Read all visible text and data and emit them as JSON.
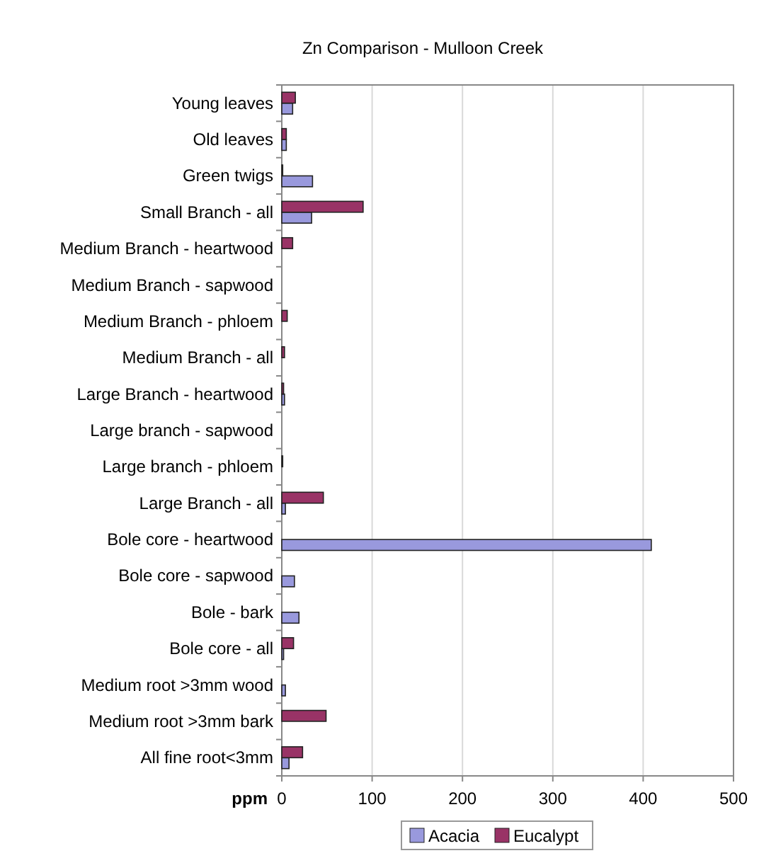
{
  "chart_data": {
    "type": "bar",
    "orientation": "horizontal",
    "title": "Zn Comparison - Mulloon Creek",
    "xlabel": "ppm",
    "categories": [
      "Young leaves",
      "Old leaves",
      "Green twigs",
      "Small Branch - all",
      "Medium Branch - heartwood",
      "Medium Branch - sapwood",
      "Medium Branch - phloem",
      "Medium Branch - all",
      "Large Branch - heartwood",
      "Large branch - sapwood",
      "Large branch - phloem",
      "Large Branch - all",
      "Bole core - heartwood",
      "Bole core - sapwood",
      "Bole - bark",
      "Bole core - all",
      "Medium root >3mm wood",
      "Medium root >3mm bark",
      "All fine root<3mm"
    ],
    "series": [
      {
        "name": "Acacia",
        "color": "#9999dd",
        "values": [
          12,
          5,
          34,
          33,
          null,
          null,
          null,
          null,
          3,
          null,
          null,
          4,
          409,
          14,
          19,
          2,
          4,
          null,
          8
        ]
      },
      {
        "name": "Eucalypt",
        "color": "#993366",
        "values": [
          15,
          5,
          1,
          90,
          12,
          null,
          6,
          3,
          2,
          null,
          1,
          46,
          null,
          null,
          null,
          13,
          null,
          49,
          23
        ]
      }
    ],
    "xlim": [
      0,
      500
    ],
    "xticks": [
      0,
      100,
      200,
      300,
      400,
      500
    ],
    "grid": "x",
    "legend": "bottom"
  }
}
